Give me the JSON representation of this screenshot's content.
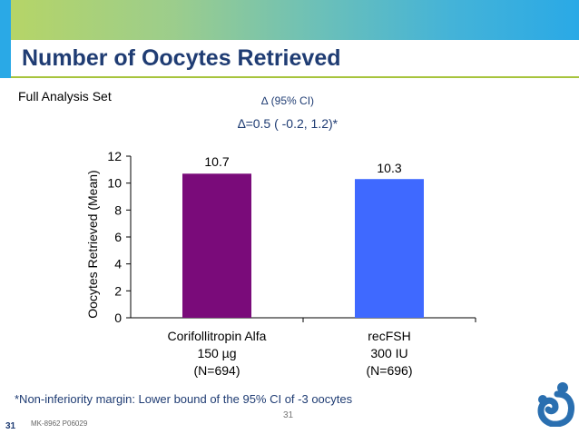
{
  "slide": {
    "title": "Number of Oocytes Retrieved",
    "subtitle": "Full Analysis Set",
    "delta_ci_label": "∆ (95% CI)",
    "delta_value": "∆=0.5 ( -0.2, 1.2)*",
    "footnote": "*Non-inferiority margin: Lower bound of the 95% CI of -3 oocytes",
    "page_number": "31",
    "page_number_left": "31",
    "reference_code": "MK-8962 P06029"
  },
  "colors": {
    "title": "#1f3c73",
    "bar_1": "#7a0b7a",
    "bar_2": "#3f69ff"
  },
  "chart_data": {
    "type": "bar",
    "title": "",
    "ylabel": "Oocytes Retrieved (Mean)",
    "xlabel": "",
    "ylim": [
      0,
      12
    ],
    "yticks": [
      0,
      2,
      4,
      6,
      8,
      10,
      12
    ],
    "categories": [
      [
        "Corifollitropin Alfa",
        "150 µg",
        "(N=694)"
      ],
      [
        "recFSH",
        "300 IU",
        "(N=696)"
      ]
    ],
    "values": [
      10.7,
      10.3
    ],
    "data_labels": [
      "10.7",
      "10.3"
    ]
  }
}
